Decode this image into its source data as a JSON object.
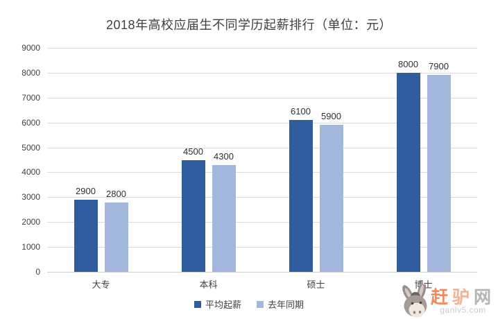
{
  "title": "2018年高校应届生不同学历起薪排行（单位：元）",
  "chart_data": {
    "type": "bar",
    "title": "2018年高校应届生不同学历起薪排行（单位：元）",
    "categories": [
      "大专",
      "本科",
      "硕士",
      "博士"
    ],
    "series": [
      {
        "name": "平均起薪",
        "color": "#2e5c9e",
        "values": [
          2900,
          4500,
          6100,
          8000
        ]
      },
      {
        "name": "去年同期",
        "color": "#a3b6dc",
        "values": [
          2800,
          4300,
          5900,
          7900
        ]
      }
    ],
    "ylim": [
      0,
      9000
    ],
    "yticks": [
      0,
      1000,
      2000,
      3000,
      4000,
      5000,
      6000,
      7000,
      8000,
      9000
    ],
    "grid": true,
    "legend_position": "bottom",
    "gridline_color": "#dcdcdc"
  },
  "watermark": {
    "site_name": "赶驴网",
    "name_chars": [
      {
        "ch": "赶",
        "color": "#ee8a5d"
      },
      {
        "ch": "驴",
        "color": "#f4b193"
      },
      {
        "ch": "网",
        "color": "#b3b3b3"
      }
    ],
    "site_url": "ganlv5.com"
  }
}
